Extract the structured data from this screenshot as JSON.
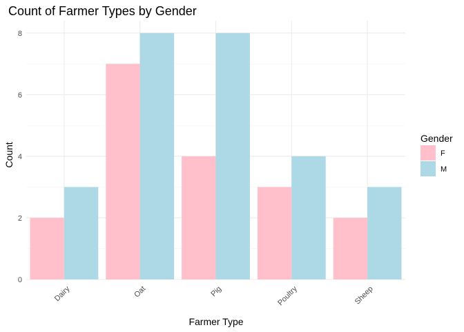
{
  "chart_data": {
    "type": "bar",
    "title": "Count of Farmer Types by Gender",
    "xlabel": "Farmer Type",
    "ylabel": "Count",
    "categories": [
      "Dairy",
      "Oat",
      "Pig",
      "Poultry",
      "Sheep"
    ],
    "series": [
      {
        "name": "F",
        "values": [
          2,
          7,
          4,
          3,
          2
        ],
        "color": "#FFC0CB"
      },
      {
        "name": "M",
        "values": [
          3,
          8,
          8,
          4,
          3
        ],
        "color": "#ADD8E6"
      }
    ],
    "yticks": [
      "0",
      "2",
      "4",
      "6",
      "8"
    ],
    "ylim": [
      0,
      8.4
    ],
    "legend": {
      "title": "Gender",
      "placement": "right"
    },
    "grid": true,
    "colors": {
      "major_grid": "#ebebeb",
      "minor_grid": "#f5f5f5"
    }
  }
}
